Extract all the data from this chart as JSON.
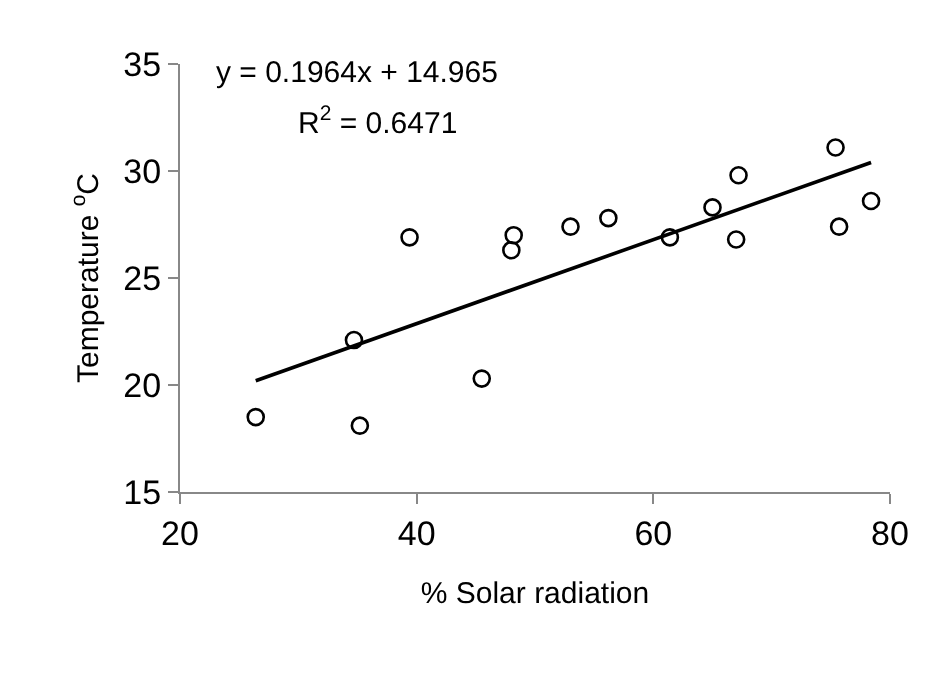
{
  "chart_data": {
    "type": "scatter",
    "xlabel": "% Solar radiation",
    "ylabel": "Temperature $^{o}$C",
    "xlim": [
      20,
      80
    ],
    "xticks": [
      20,
      40,
      60,
      80
    ],
    "ylim": [
      15,
      35
    ],
    "yticks": [
      15,
      20,
      25,
      30,
      35
    ],
    "marker": "circle",
    "annotations": [
      "y = 0.1964x + 14.965",
      "R$^{2}$ = 0.6471"
    ],
    "series": [
      {
        "color": "#000000",
        "x": [
          26.4,
          34.7,
          35.2,
          39.4,
          45.5,
          48.0,
          48.2,
          53.0,
          56.2,
          61.4,
          65.0,
          67.2,
          67.0,
          75.4,
          75.7,
          78.4
        ],
        "values": [
          18.5,
          22.1,
          18.1,
          26.9,
          20.3,
          26.3,
          27.0,
          27.4,
          27.8,
          26.9,
          28.3,
          29.8,
          26.8,
          31.1,
          27.4,
          28.6
        ]
      },
      {
        "type": "line",
        "color": "#000000",
        "line_style": "solid",
        "marker": "none",
        "x": [
          26.4,
          78.4
        ],
        "values": [
          20.2,
          30.4
        ]
      }
    ]
  }
}
